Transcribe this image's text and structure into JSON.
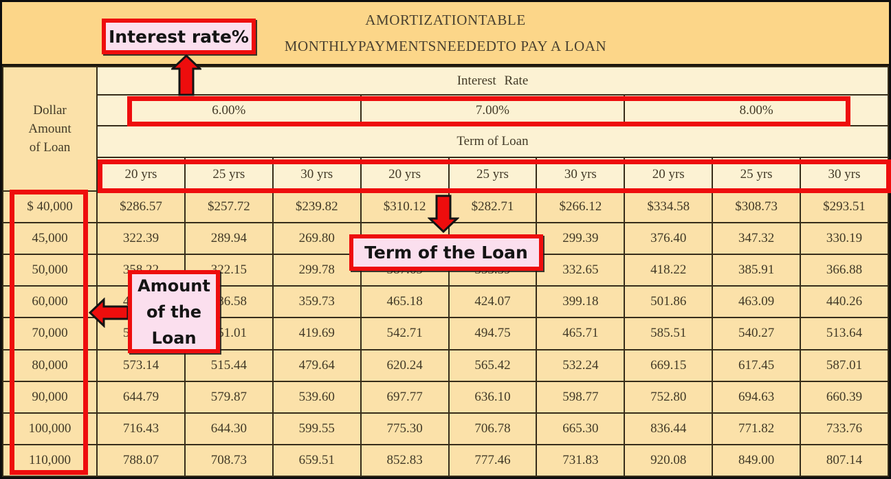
{
  "title": {
    "line1": "AMORTIZATIONTABLE",
    "line2": "MONTHLYPAYMENTSNEEDEDTO PAY A LOAN"
  },
  "table": {
    "corner_lines": [
      "Dollar",
      "Amount",
      "of Loan"
    ],
    "interest_rate_header": "Interest Rate",
    "rates": [
      "6.00%",
      "7.00%",
      "8.00%"
    ],
    "term_header": "Term of Loan",
    "term_columns": [
      "20 yrs",
      "25 yrs",
      "30 yrs",
      "20 yrs",
      "25 yrs",
      "30 yrs",
      "20 yrs",
      "25 yrs",
      "30 yrs"
    ],
    "rows": [
      {
        "amount": "$ 40,000",
        "values": [
          "$286.57",
          "$257.72",
          "$239.82",
          "$310.12",
          "$282.71",
          "$266.12",
          "$334.58",
          "$308.73",
          "$293.51"
        ]
      },
      {
        "amount": "45,000",
        "values": [
          "322.39",
          "289.94",
          "269.80",
          "",
          "",
          "299.39",
          "376.40",
          "347.32",
          "330.19"
        ]
      },
      {
        "amount": "50,000",
        "values": [
          "358.22",
          "322.15",
          "299.78",
          "387.65",
          "353.39",
          "332.65",
          "418.22",
          "385.91",
          "366.88"
        ]
      },
      {
        "amount": "60,000",
        "values": [
          "429.86",
          "386.58",
          "359.73",
          "465.18",
          "424.07",
          "399.18",
          "501.86",
          "463.09",
          "440.26"
        ]
      },
      {
        "amount": "70,000",
        "values": [
          "501.50",
          "451.01",
          "419.69",
          "542.71",
          "494.75",
          "465.71",
          "585.51",
          "540.27",
          "513.64"
        ]
      },
      {
        "amount": "80,000",
        "values": [
          "573.14",
          "515.44",
          "479.64",
          "620.24",
          "565.42",
          "532.24",
          "669.15",
          "617.45",
          "587.01"
        ]
      },
      {
        "amount": "90,000",
        "values": [
          "644.79",
          "579.87",
          "539.60",
          "697.77",
          "636.10",
          "598.77",
          "752.80",
          "694.63",
          "660.39"
        ]
      },
      {
        "amount": "100,000",
        "values": [
          "716.43",
          "644.30",
          "599.55",
          "775.30",
          "706.78",
          "665.30",
          "836.44",
          "771.82",
          "733.76"
        ]
      },
      {
        "amount": "110,000",
        "values": [
          "788.07",
          "708.73",
          "659.51",
          "852.83",
          "777.46",
          "731.83",
          "920.08",
          "849.00",
          "807.14"
        ]
      }
    ]
  },
  "annotations": {
    "interest_label": "Interest rate%",
    "term_label": "Term of the Loan",
    "amount_label_lines": [
      "Amount",
      "of the",
      "Loan"
    ],
    "colors": {
      "annotation_red": "#ee0d0d",
      "callout_pink": "#fbdfee",
      "title_band_gold": "#fcd689",
      "header_cream": "#fcf2d3",
      "cell_tan": "#fbe1a9"
    }
  }
}
